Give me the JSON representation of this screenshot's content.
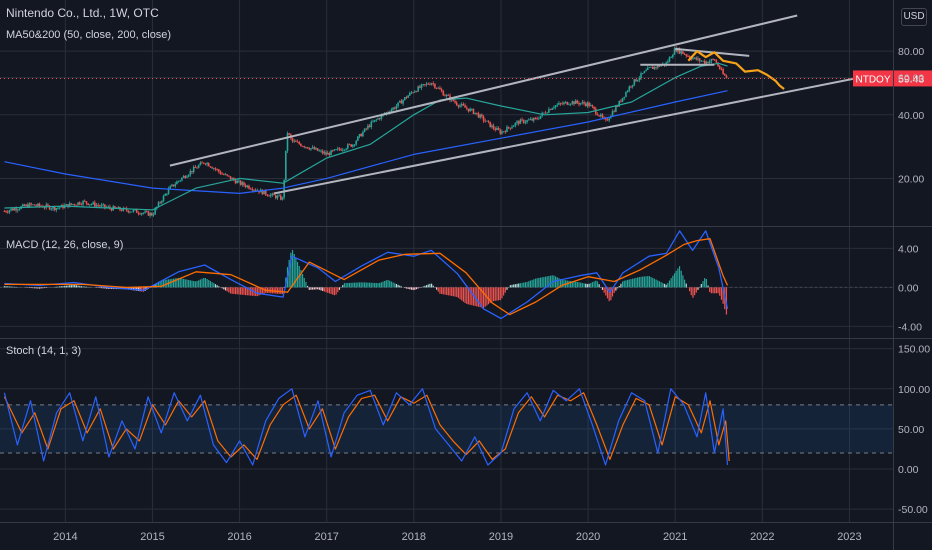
{
  "header": {
    "symbol_title": "Nintendo Co., Ltd., 1W, OTC",
    "ma_indicator": "MA50&200 (50, close, 200, close)",
    "currency": "USD"
  },
  "price_tag": {
    "ticker": "NTDOY",
    "value": "59.43",
    "color": "#f23645"
  },
  "colors": {
    "background": "#131722",
    "grid": "#2a2e39",
    "trendline": "#b2b5be",
    "projection": "#f7a21b",
    "ma50": "#26a69a",
    "ma200": "#2962ff",
    "macd_line": "#2962ff",
    "signal_line": "#ff6d00",
    "stoch_k": "#2962ff",
    "stoch_d": "#ff6d00",
    "up_candle": "#26a69a",
    "down_candle": "#ef5350"
  },
  "x_axis": {
    "ticks": [
      "2014",
      "2015",
      "2016",
      "2017",
      "2018",
      "2019",
      "2020",
      "2021",
      "2022",
      "2023"
    ]
  },
  "chart_data": [
    {
      "type": "candlestick",
      "panel": "price",
      "scale": "log",
      "y_ticks": [
        "80.00",
        "60.00",
        "40.00",
        "20.00"
      ],
      "last_price": 59.43,
      "price_path": [
        [
          2013.3,
          14
        ],
        [
          2013.6,
          15
        ],
        [
          2013.9,
          14.5
        ],
        [
          2014.2,
          15.5
        ],
        [
          2014.5,
          14.5
        ],
        [
          2014.8,
          14
        ],
        [
          2015.0,
          13.5
        ],
        [
          2015.2,
          18
        ],
        [
          2015.4,
          21
        ],
        [
          2015.6,
          24
        ],
        [
          2015.8,
          21
        ],
        [
          2016.0,
          19
        ],
        [
          2016.3,
          17
        ],
        [
          2016.5,
          16
        ],
        [
          2016.55,
          33
        ],
        [
          2016.6,
          30
        ],
        [
          2016.8,
          28
        ],
        [
          2017.0,
          26
        ],
        [
          2017.3,
          29
        ],
        [
          2017.5,
          36
        ],
        [
          2017.8,
          44
        ],
        [
          2018.0,
          52
        ],
        [
          2018.2,
          57
        ],
        [
          2018.35,
          50
        ],
        [
          2018.5,
          45
        ],
        [
          2018.7,
          41
        ],
        [
          2018.9,
          35
        ],
        [
          2019.0,
          33
        ],
        [
          2019.2,
          37
        ],
        [
          2019.4,
          38
        ],
        [
          2019.6,
          44
        ],
        [
          2019.8,
          46
        ],
        [
          2020.0,
          45
        ],
        [
          2020.2,
          37
        ],
        [
          2020.35,
          45
        ],
        [
          2020.5,
          56
        ],
        [
          2020.7,
          66
        ],
        [
          2020.9,
          70
        ],
        [
          2021.0,
          82
        ],
        [
          2021.1,
          78
        ],
        [
          2021.2,
          74
        ],
        [
          2021.35,
          71
        ],
        [
          2021.45,
          73
        ],
        [
          2021.55,
          62
        ],
        [
          2021.6,
          59.43
        ]
      ],
      "ma50": [
        [
          2013.3,
          14.5
        ],
        [
          2014.0,
          14.8
        ],
        [
          2014.8,
          14.3
        ],
        [
          2015.0,
          14.2
        ],
        [
          2015.5,
          18
        ],
        [
          2016.0,
          20
        ],
        [
          2016.5,
          19
        ],
        [
          2017.0,
          25
        ],
        [
          2017.5,
          29
        ],
        [
          2018.0,
          40
        ],
        [
          2018.3,
          47
        ],
        [
          2018.6,
          48
        ],
        [
          2019.0,
          44
        ],
        [
          2019.5,
          40
        ],
        [
          2020.0,
          41
        ],
        [
          2020.5,
          46
        ],
        [
          2021.0,
          60
        ],
        [
          2021.3,
          68
        ],
        [
          2021.5,
          70
        ],
        [
          2021.6,
          68
        ]
      ],
      "ma200": [
        [
          2013.3,
          24
        ],
        [
          2014.0,
          21
        ],
        [
          2015.0,
          18
        ],
        [
          2016.0,
          17
        ],
        [
          2016.5,
          18
        ],
        [
          2017.0,
          20
        ],
        [
          2018.0,
          26
        ],
        [
          2019.0,
          31
        ],
        [
          2020.0,
          37
        ],
        [
          2021.0,
          46
        ],
        [
          2021.6,
          52
        ]
      ],
      "projection": [
        [
          2021.15,
          72
        ],
        [
          2021.25,
          80
        ],
        [
          2021.35,
          75
        ],
        [
          2021.45,
          79
        ],
        [
          2021.55,
          72
        ],
        [
          2021.7,
          70
        ],
        [
          2021.8,
          64
        ],
        [
          2021.95,
          65
        ],
        [
          2022.05,
          62
        ],
        [
          2022.15,
          58
        ],
        [
          2022.2,
          55
        ],
        [
          2022.25,
          53
        ]
      ],
      "trendlines": [
        {
          "name": "upper-channel",
          "points": [
            [
              2015.2,
              23
            ],
            [
              2022.4,
              118
            ]
          ]
        },
        {
          "name": "lower-channel",
          "points": [
            [
              2016.4,
              17
            ],
            [
              2023.2,
              61
            ]
          ]
        },
        {
          "name": "descending-top",
          "points": [
            [
              2021.0,
              82
            ],
            [
              2021.85,
              76
            ]
          ]
        },
        {
          "name": "horizontal-support",
          "points": [
            [
              2020.6,
              69
            ],
            [
              2021.45,
              69
            ]
          ]
        }
      ]
    },
    {
      "type": "line",
      "panel": "macd",
      "title": "MACD (12, 26, close, 9)",
      "y_ticks": [
        "4.00",
        "0.00",
        "-4.00"
      ],
      "series": [
        {
          "name": "macd",
          "points": [
            [
              2013.3,
              0.4
            ],
            [
              2013.7,
              0.2
            ],
            [
              2014.1,
              0.5
            ],
            [
              2014.5,
              0.0
            ],
            [
              2014.9,
              -0.3
            ],
            [
              2015.3,
              1.6
            ],
            [
              2015.6,
              2.3
            ],
            [
              2015.9,
              0.8
            ],
            [
              2016.2,
              -0.6
            ],
            [
              2016.5,
              -1.0
            ],
            [
              2016.6,
              3.2
            ],
            [
              2016.9,
              2.0
            ],
            [
              2017.1,
              0.6
            ],
            [
              2017.4,
              2.2
            ],
            [
              2017.7,
              3.6
            ],
            [
              2018.0,
              3.2
            ],
            [
              2018.2,
              3.8
            ],
            [
              2018.5,
              1.4
            ],
            [
              2018.8,
              -2.2
            ],
            [
              2019.0,
              -3.2
            ],
            [
              2019.3,
              -1.5
            ],
            [
              2019.6,
              0.6
            ],
            [
              2019.9,
              1.2
            ],
            [
              2020.1,
              1.5
            ],
            [
              2020.25,
              -0.5
            ],
            [
              2020.4,
              1.5
            ],
            [
              2020.7,
              3.2
            ],
            [
              2020.9,
              3.5
            ],
            [
              2021.05,
              5.8
            ],
            [
              2021.2,
              3.8
            ],
            [
              2021.35,
              5.8
            ],
            [
              2021.5,
              2.0
            ],
            [
              2021.6,
              -2.2
            ]
          ]
        },
        {
          "name": "signal",
          "points": [
            [
              2013.3,
              0.3
            ],
            [
              2013.8,
              0.3
            ],
            [
              2014.2,
              0.3
            ],
            [
              2014.7,
              0.0
            ],
            [
              2015.1,
              0.1
            ],
            [
              2015.5,
              1.6
            ],
            [
              2015.9,
              1.3
            ],
            [
              2016.3,
              -0.3
            ],
            [
              2016.55,
              -0.5
            ],
            [
              2016.8,
              2.6
            ],
            [
              2017.2,
              0.8
            ],
            [
              2017.6,
              2.8
            ],
            [
              2017.9,
              3.4
            ],
            [
              2018.3,
              3.5
            ],
            [
              2018.6,
              1.5
            ],
            [
              2018.9,
              -1.6
            ],
            [
              2019.1,
              -2.8
            ],
            [
              2019.4,
              -1.5
            ],
            [
              2019.7,
              0.2
            ],
            [
              2020.0,
              1.1
            ],
            [
              2020.3,
              0.6
            ],
            [
              2020.6,
              1.8
            ],
            [
              2020.9,
              3.3
            ],
            [
              2021.1,
              4.4
            ],
            [
              2021.25,
              4.8
            ],
            [
              2021.4,
              5.0
            ],
            [
              2021.55,
              1.2
            ],
            [
              2021.6,
              0.2
            ]
          ]
        }
      ]
    },
    {
      "type": "line",
      "panel": "stochastic",
      "title": "Stoch (14, 1, 3)",
      "y_ticks": [
        "150.00",
        "100.00",
        "50.00",
        "0.00",
        "-50.00"
      ],
      "upper_band": 80,
      "lower_band": 20,
      "series": [
        {
          "name": "%K",
          "points": [
            [
              2013.3,
              95
            ],
            [
              2013.45,
              30
            ],
            [
              2013.6,
              85
            ],
            [
              2013.75,
              10
            ],
            [
              2013.9,
              70
            ],
            [
              2014.05,
              95
            ],
            [
              2014.2,
              35
            ],
            [
              2014.35,
              90
            ],
            [
              2014.5,
              15
            ],
            [
              2014.65,
              60
            ],
            [
              2014.8,
              25
            ],
            [
              2014.95,
              90
            ],
            [
              2015.1,
              45
            ],
            [
              2015.25,
              95
            ],
            [
              2015.4,
              60
            ],
            [
              2015.55,
              92
            ],
            [
              2015.7,
              30
            ],
            [
              2015.85,
              8
            ],
            [
              2016.0,
              35
            ],
            [
              2016.15,
              5
            ],
            [
              2016.3,
              60
            ],
            [
              2016.45,
              88
            ],
            [
              2016.6,
              100
            ],
            [
              2016.75,
              40
            ],
            [
              2016.9,
              85
            ],
            [
              2017.05,
              15
            ],
            [
              2017.2,
              70
            ],
            [
              2017.35,
              92
            ],
            [
              2017.5,
              98
            ],
            [
              2017.65,
              55
            ],
            [
              2017.8,
              95
            ],
            [
              2017.95,
              80
            ],
            [
              2018.1,
              100
            ],
            [
              2018.25,
              50
            ],
            [
              2018.4,
              30
            ],
            [
              2018.55,
              10
            ],
            [
              2018.7,
              40
            ],
            [
              2018.85,
              5
            ],
            [
              2019.0,
              20
            ],
            [
              2019.15,
              75
            ],
            [
              2019.3,
              95
            ],
            [
              2019.45,
              60
            ],
            [
              2019.6,
              98
            ],
            [
              2019.75,
              85
            ],
            [
              2019.9,
              100
            ],
            [
              2020.05,
              55
            ],
            [
              2020.2,
              5
            ],
            [
              2020.35,
              60
            ],
            [
              2020.5,
              95
            ],
            [
              2020.65,
              85
            ],
            [
              2020.8,
              20
            ],
            [
              2020.95,
              100
            ],
            [
              2021.1,
              80
            ],
            [
              2021.25,
              40
            ],
            [
              2021.35,
              95
            ],
            [
              2021.45,
              20
            ],
            [
              2021.55,
              75
            ],
            [
              2021.6,
              5
            ]
          ]
        },
        {
          "name": "%D",
          "points": [
            [
              2013.3,
              90
            ],
            [
              2013.5,
              45
            ],
            [
              2013.65,
              70
            ],
            [
              2013.8,
              25
            ],
            [
              2013.95,
              75
            ],
            [
              2014.1,
              85
            ],
            [
              2014.25,
              45
            ],
            [
              2014.4,
              75
            ],
            [
              2014.55,
              25
            ],
            [
              2014.7,
              50
            ],
            [
              2014.85,
              35
            ],
            [
              2015.0,
              80
            ],
            [
              2015.15,
              55
            ],
            [
              2015.3,
              85
            ],
            [
              2015.45,
              65
            ],
            [
              2015.6,
              85
            ],
            [
              2015.75,
              35
            ],
            [
              2015.9,
              15
            ],
            [
              2016.05,
              30
            ],
            [
              2016.2,
              12
            ],
            [
              2016.35,
              55
            ],
            [
              2016.5,
              80
            ],
            [
              2016.65,
              92
            ],
            [
              2016.8,
              50
            ],
            [
              2016.95,
              75
            ],
            [
              2017.1,
              25
            ],
            [
              2017.25,
              65
            ],
            [
              2017.4,
              88
            ],
            [
              2017.55,
              92
            ],
            [
              2017.7,
              60
            ],
            [
              2017.85,
              90
            ],
            [
              2018.0,
              82
            ],
            [
              2018.15,
              92
            ],
            [
              2018.3,
              55
            ],
            [
              2018.45,
              35
            ],
            [
              2018.6,
              18
            ],
            [
              2018.75,
              35
            ],
            [
              2018.9,
              12
            ],
            [
              2019.05,
              25
            ],
            [
              2019.2,
              70
            ],
            [
              2019.35,
              90
            ],
            [
              2019.5,
              65
            ],
            [
              2019.65,
              92
            ],
            [
              2019.8,
              85
            ],
            [
              2019.95,
              95
            ],
            [
              2020.1,
              55
            ],
            [
              2020.25,
              12
            ],
            [
              2020.4,
              55
            ],
            [
              2020.55,
              88
            ],
            [
              2020.7,
              80
            ],
            [
              2020.85,
              30
            ],
            [
              2021.0,
              90
            ],
            [
              2021.15,
              80
            ],
            [
              2021.3,
              45
            ],
            [
              2021.4,
              85
            ],
            [
              2021.5,
              30
            ],
            [
              2021.58,
              60
            ],
            [
              2021.62,
              10
            ]
          ]
        }
      ]
    }
  ]
}
